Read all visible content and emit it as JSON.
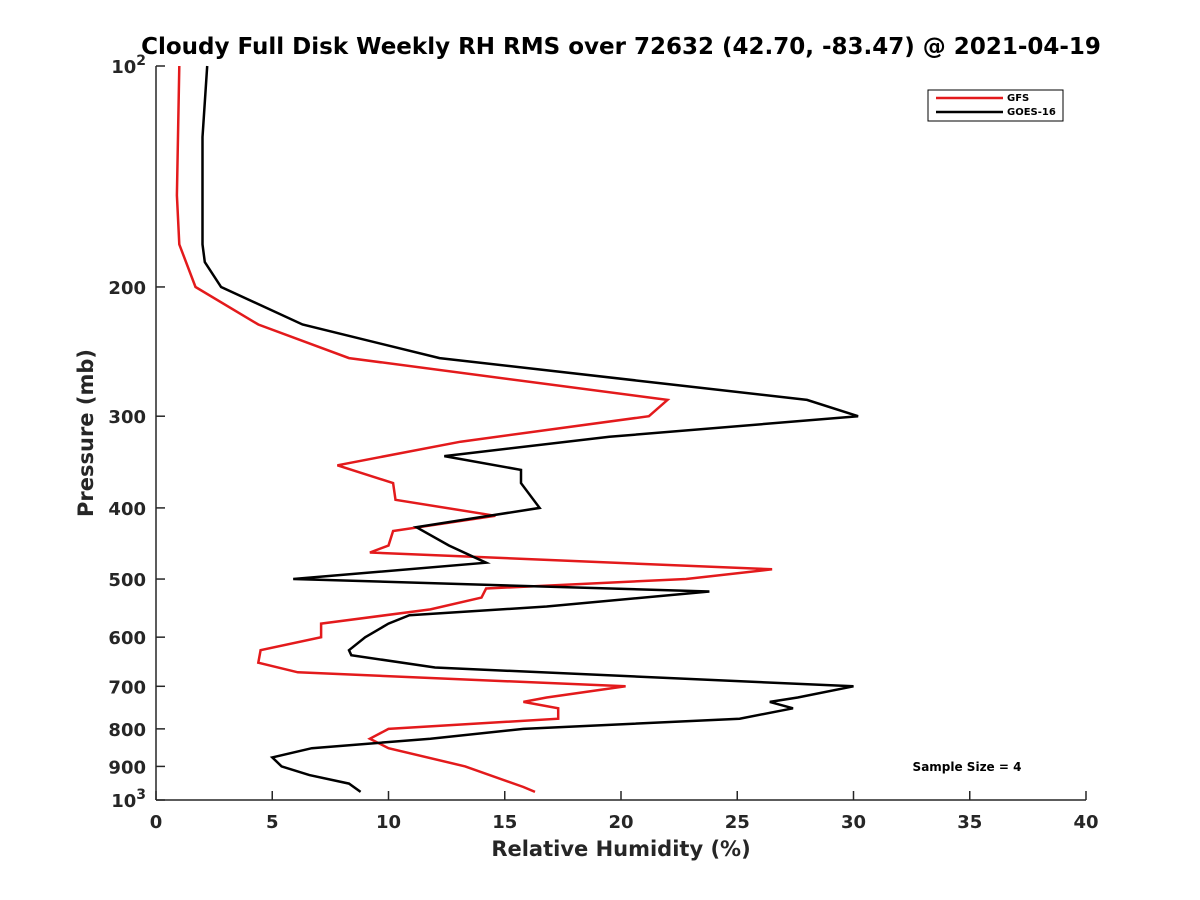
{
  "chart_data": {
    "type": "line",
    "title": "Cloudy Full Disk Weekly RH RMS over 72632 (42.70, -83.47) @ 2021-04-19",
    "xlabel": "Relative Humidity (%)",
    "ylabel": "Pressure (mb)",
    "xlim": [
      0,
      40
    ],
    "ylim": [
      100,
      1000
    ],
    "y_scale": "log",
    "y_reversed": true,
    "x_ticks": [
      "0",
      "5",
      "10",
      "15",
      "20",
      "25",
      "30",
      "35",
      "40"
    ],
    "y_ticks": [
      {
        "value": 100,
        "base": "10",
        "exp": "2"
      },
      {
        "value": 200,
        "label": "200"
      },
      {
        "value": 300,
        "label": "300"
      },
      {
        "value": 400,
        "label": "400"
      },
      {
        "value": 500,
        "label": "500"
      },
      {
        "value": 600,
        "label": "600"
      },
      {
        "value": 700,
        "label": "700"
      },
      {
        "value": 800,
        "label": "800"
      },
      {
        "value": 900,
        "label": "900"
      },
      {
        "value": 1000,
        "base": "10",
        "exp": "3"
      }
    ],
    "grid": false,
    "legend_position": "top-right",
    "series": [
      {
        "name": "GFS",
        "color": "#e31a1c",
        "points": [
          [
            1.0,
            100
          ],
          [
            0.9,
            150
          ],
          [
            1.0,
            175
          ],
          [
            1.7,
            200
          ],
          [
            4.4,
            225
          ],
          [
            8.3,
            250
          ],
          [
            22.0,
            285
          ],
          [
            21.2,
            300
          ],
          [
            13.1,
            325
          ],
          [
            7.8,
            350
          ],
          [
            10.2,
            370
          ],
          [
            10.3,
            390
          ],
          [
            14.6,
            410
          ],
          [
            10.2,
            430
          ],
          [
            10.0,
            450
          ],
          [
            9.2,
            460
          ],
          [
            26.5,
            485
          ],
          [
            22.8,
            500
          ],
          [
            14.2,
            515
          ],
          [
            14.0,
            530
          ],
          [
            11.8,
            550
          ],
          [
            7.1,
            575
          ],
          [
            7.1,
            600
          ],
          [
            4.5,
            625
          ],
          [
            4.4,
            650
          ],
          [
            6.1,
            670
          ],
          [
            20.2,
            700
          ],
          [
            16.8,
            725
          ],
          [
            15.8,
            735
          ],
          [
            17.3,
            750
          ],
          [
            17.3,
            775
          ],
          [
            10.0,
            800
          ],
          [
            9.2,
            825
          ],
          [
            10.0,
            850
          ],
          [
            13.3,
            900
          ],
          [
            15.8,
            960
          ],
          [
            16.3,
            975
          ]
        ]
      },
      {
        "name": "GOES-16",
        "color": "#000000",
        "points": [
          [
            2.2,
            100
          ],
          [
            2.0,
            125
          ],
          [
            2.0,
            175
          ],
          [
            2.1,
            185
          ],
          [
            2.8,
            200
          ],
          [
            6.3,
            225
          ],
          [
            12.2,
            250
          ],
          [
            28.0,
            285
          ],
          [
            30.2,
            300
          ],
          [
            19.5,
            320
          ],
          [
            12.4,
            340
          ],
          [
            15.7,
            355
          ],
          [
            15.7,
            370
          ],
          [
            16.5,
            400
          ],
          [
            11.2,
            425
          ],
          [
            12.6,
            450
          ],
          [
            14.2,
            475
          ],
          [
            5.9,
            500
          ],
          [
            23.8,
            520
          ],
          [
            16.8,
            545
          ],
          [
            10.9,
            560
          ],
          [
            10.0,
            575
          ],
          [
            9.0,
            600
          ],
          [
            8.3,
            625
          ],
          [
            8.4,
            635
          ],
          [
            12.0,
            660
          ],
          [
            30.0,
            700
          ],
          [
            27.6,
            725
          ],
          [
            26.4,
            735
          ],
          [
            27.4,
            750
          ],
          [
            25.1,
            775
          ],
          [
            15.8,
            800
          ],
          [
            11.8,
            825
          ],
          [
            6.7,
            850
          ],
          [
            5.0,
            875
          ],
          [
            5.4,
            900
          ],
          [
            6.6,
            925
          ],
          [
            8.3,
            950
          ],
          [
            8.8,
            975
          ]
        ]
      }
    ],
    "annotations": [
      "Sample Size = 4"
    ]
  }
}
